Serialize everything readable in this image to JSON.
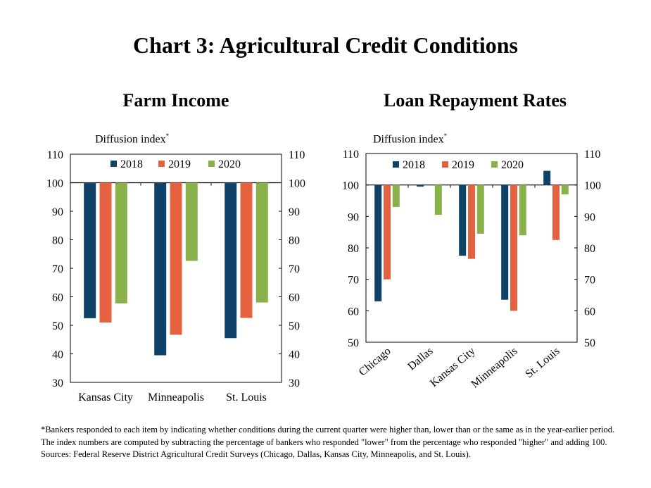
{
  "title": "Chart 3: Agricultural Credit Conditions",
  "footnote": {
    "note": "*Bankers responded to each item by indicating whether conditions during the current quarter were higher than, lower than or the same as in the year-earlier period. The index numbers are computed by subtracting the percentage of bankers who responded \"lower\" from the percentage who responded \"higher\" and adding 100.",
    "sources": "Sources: Federal Reserve District Agricultural Credit Surveys (Chicago, Dallas, Kansas City, Minneapolis, and St. Louis)."
  },
  "chart_data": [
    {
      "type": "bar",
      "title": "Farm Income",
      "ylabel": "Diffusion index",
      "ylabel_marker": "*",
      "ylim": [
        30,
        110
      ],
      "yticks": [
        30,
        40,
        50,
        60,
        70,
        80,
        90,
        100,
        110
      ],
      "baseline": 100,
      "categories": [
        "Kansas City",
        "Minneapolis",
        "St. Louis"
      ],
      "series": [
        {
          "name": "2018",
          "color": "#0f4266",
          "values": [
            52.5,
            39.5,
            45.5
          ]
        },
        {
          "name": "2019",
          "color": "#e56240",
          "values": [
            51,
            46.7,
            52.6
          ]
        },
        {
          "name": "2020",
          "color": "#88b04b",
          "values": [
            57.7,
            72.6,
            58
          ]
        }
      ],
      "legend": "top-center",
      "secondary_axis": true
    },
    {
      "type": "bar",
      "title": "Loan Repayment Rates",
      "ylabel": "Diffusion index",
      "ylabel_marker": "*",
      "ylim": [
        50,
        110
      ],
      "yticks": [
        50,
        60,
        70,
        80,
        90,
        100,
        110
      ],
      "baseline": 100,
      "categories": [
        "Chicago",
        "Dallas",
        "Kansas City",
        "Minneapolis",
        "St. Louis"
      ],
      "series": [
        {
          "name": "2018",
          "color": "#0f4266",
          "values": [
            63,
            99.5,
            77.5,
            63.5,
            104.5
          ]
        },
        {
          "name": "2019",
          "color": "#e56240",
          "values": [
            70,
            null,
            76.5,
            60,
            82.5
          ]
        },
        {
          "name": "2020",
          "color": "#88b04b",
          "values": [
            93,
            90.5,
            84.5,
            84,
            97
          ]
        }
      ],
      "legend": "top-center",
      "secondary_axis": true,
      "rotated_tick_labels": true
    }
  ]
}
